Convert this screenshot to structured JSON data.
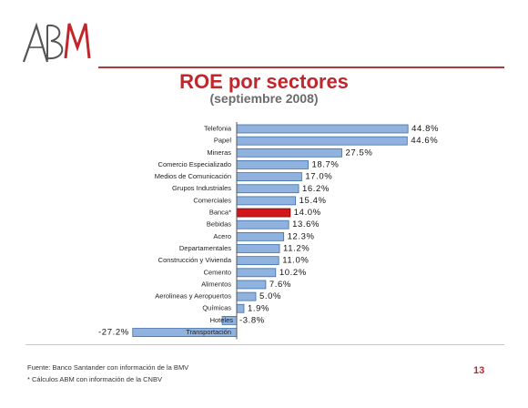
{
  "header": {
    "logo_text": "ABM",
    "title": "ROE por sectores",
    "subtitle": "(septiembre 2008)"
  },
  "chart_data": {
    "type": "bar",
    "orientation": "horizontal",
    "title": "ROE por sectores",
    "subtitle": "(septiembre 2008)",
    "categories": [
      "Telefonia",
      "Papel",
      "Mineras",
      "Comercio Especializado",
      "Medios de Comunicación",
      "Grupos Industriales",
      "Comerciales",
      "Banca*",
      "Bebidas",
      "Acero",
      "Departamentales",
      "Construcción y Vivienda",
      "Cemento",
      "Alimentos",
      "Aerolineas y Aeropuertos",
      "Químicas",
      "Hoteles",
      "Transportación"
    ],
    "values": [
      44.8,
      44.6,
      27.5,
      18.7,
      17.0,
      16.2,
      15.4,
      14.0,
      13.6,
      12.3,
      11.2,
      11.0,
      10.2,
      7.6,
      5.0,
      1.9,
      -3.8,
      -27.2
    ],
    "value_labels": [
      "44.8%",
      "44.6%",
      "27.5%",
      "18.7%",
      "17.0%",
      "16.2%",
      "15.4%",
      "14.0%",
      "13.6%",
      "12.3%",
      "11.2%",
      "11.0%",
      "10.2%",
      "7.6%",
      "5.0%",
      "1.9%",
      "-3.8%",
      "-27.2%"
    ],
    "highlight_category": "Banca*",
    "colors": {
      "bar": "#8fb2de",
      "bar_edge": "#3f6ea8",
      "highlight": "#d2141b",
      "highlight_edge": "#8a0000"
    },
    "xlim": [
      -29,
      48
    ],
    "grid": false,
    "legend": "none"
  },
  "footer": {
    "source_note": "Fuente: Banco Santander con información de la BMV",
    "abm_note": "* Cálculos ABM con información de la CNBV",
    "page_number": "13"
  }
}
